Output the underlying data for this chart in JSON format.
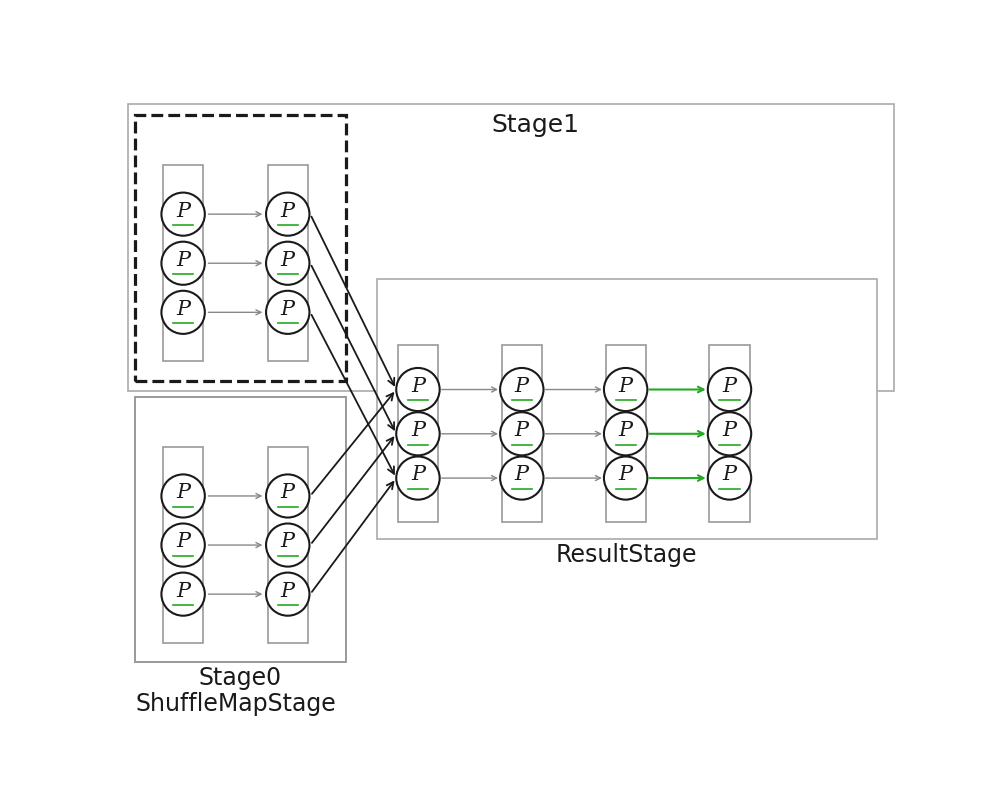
{
  "bg_color": "#ffffff",
  "title_stage1": "Stage1",
  "title_stage0": "Stage0",
  "title_shuffle": "ShuffleMapStage",
  "title_result": "ResultStage",
  "label_p": "P",
  "circle_edge": "#1a1a1a",
  "rect_edge_dark": "#333333",
  "rect_edge_light": "#999999",
  "dashed_edge": "#1a1a1a",
  "arrow_gray": "#888888",
  "arrow_black": "#1a1a1a",
  "green_arrow": "#22aa22",
  "font_size_p": 15,
  "font_size_title": 17,
  "font_size_shuffle": 17,
  "underline_color": "#22aa22"
}
